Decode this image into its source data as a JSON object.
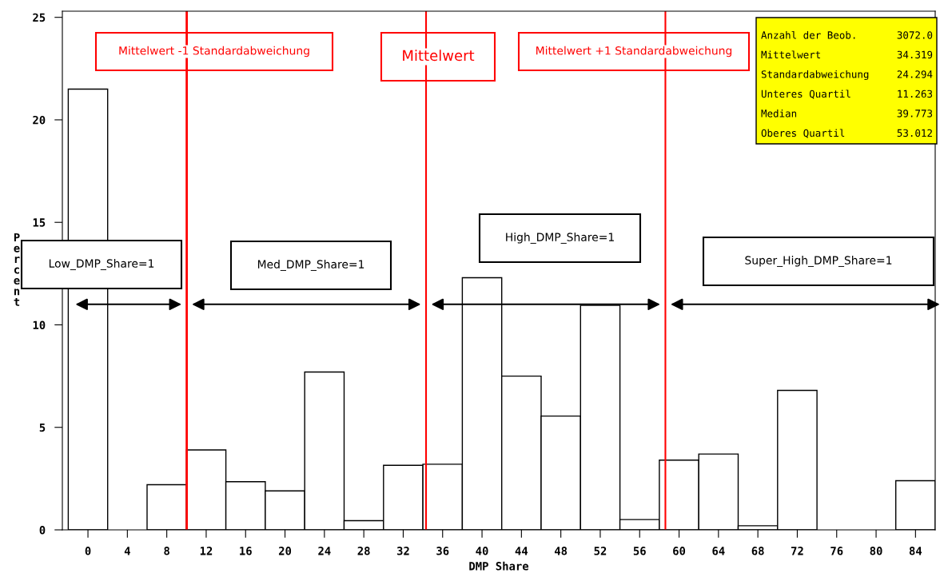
{
  "chart_data": {
    "type": "histogram",
    "xlabel": "DMP Share",
    "ylabel": "Percent",
    "bins": [
      -2,
      2,
      6,
      10,
      14,
      18,
      22,
      26,
      30,
      34,
      38,
      42,
      46,
      50,
      54,
      58,
      62,
      66,
      70,
      74,
      78,
      82,
      86
    ],
    "values": [
      21.5,
      0,
      2.2,
      3.9,
      2.35,
      1.9,
      7.7,
      0.45,
      3.15,
      3.2,
      12.3,
      7.5,
      5.55,
      10.95,
      0.5,
      3.4,
      3.7,
      0.2,
      6.8,
      0,
      0,
      2.4
    ],
    "color": "#ffffff",
    "xlim": [
      -2.6,
      86
    ],
    "ylim": [
      0,
      25.3
    ],
    "xticks": [
      0,
      4,
      8,
      12,
      16,
      20,
      24,
      28,
      32,
      36,
      40,
      44,
      48,
      52,
      56,
      60,
      64,
      68,
      72,
      76,
      80,
      84
    ],
    "yticks": [
      0,
      5,
      10,
      15,
      20,
      25
    ],
    "ref_lines": [
      {
        "axis": "x",
        "value": 10.025,
        "label": "Mittelwert -1 Standardabweichung",
        "color": "#ff0000"
      },
      {
        "axis": "x",
        "value": 34.319,
        "label": "Mittelwert",
        "color": "#ff0000"
      },
      {
        "axis": "x",
        "value": 58.613,
        "label": "Mittelwert +1 Standardabweichung",
        "color": "#ff0000"
      }
    ],
    "annotations": [
      "Low_DMP_Share=1",
      "Med_DMP_Share=1",
      "High_DMP_Share=1",
      "Super_High_DMP_Share=1",
      "Anzahl der Beob.",
      "3072.0",
      "Mittelwert",
      "34.319",
      "Standardabweichung",
      "24.294",
      "Unteres Quartil",
      "11.263",
      "Median",
      "39.773",
      "Oberes Quartil",
      "53.012"
    ],
    "grid": false
  }
}
